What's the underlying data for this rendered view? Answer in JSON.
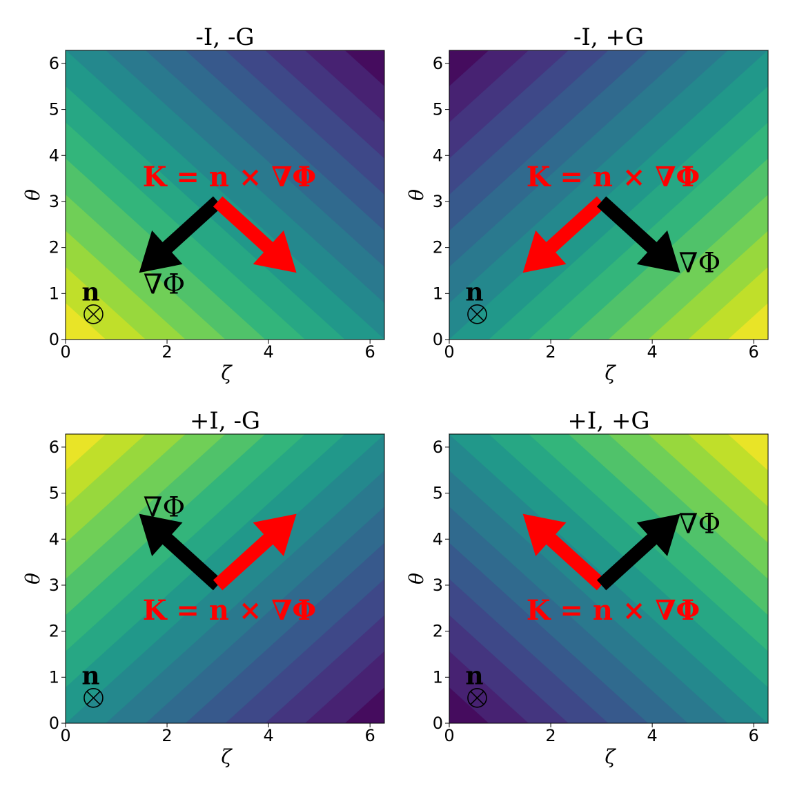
{
  "chart_data": [
    {
      "type": "heatmap",
      "title": "-I, -G",
      "xlabel": "ζ",
      "ylabel": "θ",
      "xlim": [
        0,
        6.2832
      ],
      "ylim": [
        0,
        6.2832
      ],
      "xticks": [
        "0",
        "2",
        "4",
        "6"
      ],
      "yticks": [
        "0",
        "1",
        "2",
        "3",
        "4",
        "5",
        "6"
      ],
      "field": {
        "a": -1,
        "b": -1,
        "levels": 16,
        "colormap": "viridis"
      },
      "arrows": [
        {
          "name": "grad-phi",
          "color": "#000000",
          "from": [
            3.0,
            3.0
          ],
          "to": [
            1.45,
            1.45
          ]
        },
        {
          "name": "k-current",
          "color": "#ff0000",
          "from": [
            3.0,
            3.0
          ],
          "to": [
            4.55,
            1.45
          ]
        }
      ],
      "labels": {
        "k": "K = n × ∇Φ",
        "grad": "∇Φ",
        "n": "n",
        "otimes": "⊗"
      }
    },
    {
      "type": "heatmap",
      "title": "-I, +G",
      "xlabel": "ζ",
      "ylabel": "θ",
      "xlim": [
        0,
        6.2832
      ],
      "ylim": [
        0,
        6.2832
      ],
      "xticks": [
        "0",
        "2",
        "4",
        "6"
      ],
      "yticks": [
        "0",
        "1",
        "2",
        "3",
        "4",
        "5",
        "6"
      ],
      "field": {
        "a": 1,
        "b": -1,
        "levels": 16,
        "colormap": "viridis"
      },
      "arrows": [
        {
          "name": "k-current",
          "color": "#ff0000",
          "from": [
            3.0,
            3.0
          ],
          "to": [
            1.45,
            1.45
          ]
        },
        {
          "name": "grad-phi",
          "color": "#000000",
          "from": [
            3.0,
            3.0
          ],
          "to": [
            4.55,
            1.45
          ]
        }
      ],
      "labels": {
        "k": "K = n × ∇Φ",
        "grad": "∇Φ",
        "n": "n",
        "otimes": "⊗"
      }
    },
    {
      "type": "heatmap",
      "title": "+I, -G",
      "xlabel": "ζ",
      "ylabel": "θ",
      "xlim": [
        0,
        6.2832
      ],
      "ylim": [
        0,
        6.2832
      ],
      "xticks": [
        "0",
        "2",
        "4",
        "6"
      ],
      "yticks": [
        "0",
        "1",
        "2",
        "3",
        "4",
        "5",
        "6"
      ],
      "field": {
        "a": -1,
        "b": 1,
        "levels": 16,
        "colormap": "viridis"
      },
      "arrows": [
        {
          "name": "grad-phi",
          "color": "#000000",
          "from": [
            3.0,
            3.0
          ],
          "to": [
            1.45,
            4.55
          ]
        },
        {
          "name": "k-current",
          "color": "#ff0000",
          "from": [
            3.0,
            3.0
          ],
          "to": [
            4.55,
            4.55
          ]
        }
      ],
      "labels": {
        "k": "K = n × ∇Φ",
        "grad": "∇Φ",
        "n": "n",
        "otimes": "⊗"
      }
    },
    {
      "type": "heatmap",
      "title": "+I, +G",
      "xlabel": "ζ",
      "ylabel": "θ",
      "xlim": [
        0,
        6.2832
      ],
      "ylim": [
        0,
        6.2832
      ],
      "xticks": [
        "0",
        "2",
        "4",
        "6"
      ],
      "yticks": [
        "0",
        "1",
        "2",
        "3",
        "4",
        "5",
        "6"
      ],
      "field": {
        "a": 1,
        "b": 1,
        "levels": 16,
        "colormap": "viridis"
      },
      "arrows": [
        {
          "name": "k-current",
          "color": "#ff0000",
          "from": [
            3.0,
            3.0
          ],
          "to": [
            1.45,
            4.55
          ]
        },
        {
          "name": "grad-phi",
          "color": "#000000",
          "from": [
            3.0,
            3.0
          ],
          "to": [
            4.55,
            4.55
          ]
        }
      ],
      "labels": {
        "k": "K = n × ∇Φ",
        "grad": "∇Φ",
        "n": "n",
        "otimes": "⊗"
      }
    }
  ]
}
